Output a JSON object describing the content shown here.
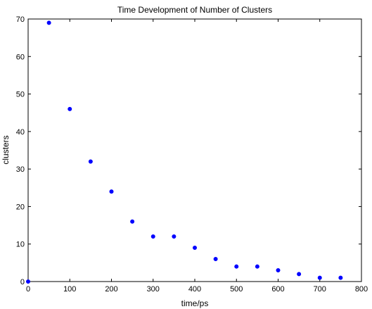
{
  "chart_data": {
    "type": "scatter",
    "title": "Time Development of Number of Clusters",
    "xlabel": "time/ps",
    "ylabel": "clusters",
    "xlim": [
      0,
      800
    ],
    "ylim": [
      0,
      70
    ],
    "xticks": [
      0,
      100,
      200,
      300,
      400,
      500,
      600,
      700,
      800
    ],
    "yticks": [
      0,
      10,
      20,
      30,
      40,
      50,
      60,
      70
    ],
    "grid": false,
    "legend": "none",
    "marker_color": "#0000ff",
    "x": [
      0,
      50,
      100,
      150,
      200,
      250,
      300,
      350,
      400,
      450,
      500,
      550,
      600,
      650,
      700,
      750
    ],
    "y": [
      0,
      69,
      46,
      32,
      24,
      16,
      12,
      12,
      9,
      6,
      4,
      4,
      3,
      2,
      1,
      1
    ]
  }
}
